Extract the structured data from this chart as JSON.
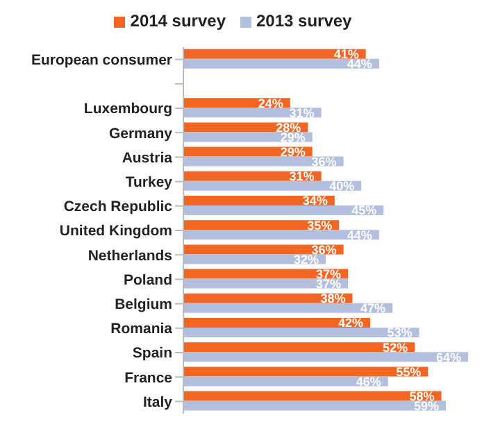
{
  "chart_data": {
    "type": "bar",
    "orientation": "horizontal",
    "legend": "top",
    "categories": [
      "European consumer",
      null,
      "Luxembourg",
      "Germany",
      "Austria",
      "Turkey",
      "Czech Republic",
      "United Kingdom",
      "Netherlands",
      "Poland",
      "Belgium",
      "Romania",
      "Spain",
      "France",
      "Italy"
    ],
    "series": [
      {
        "name": "2014 survey",
        "color": "#f26522",
        "values": [
          41,
          null,
          24,
          28,
          29,
          31,
          34,
          35,
          36,
          37,
          38,
          42,
          52,
          55,
          58
        ],
        "value_labels": [
          "41%",
          null,
          "24%",
          "28%",
          "29%",
          "31%",
          "34%",
          "35%",
          "36%",
          "37%",
          "38%",
          "42%",
          "52%",
          "55%",
          "58%"
        ]
      },
      {
        "name": "2013 survey",
        "color": "#b3bfde",
        "values": [
          44,
          null,
          31,
          29,
          36,
          40,
          45,
          44,
          32,
          37,
          47,
          53,
          64,
          46,
          59
        ],
        "value_labels": [
          "44%",
          null,
          "31%",
          "29%",
          "36%",
          "40%",
          "45%",
          "44%",
          "32%",
          "37%",
          "47%",
          "53%",
          "64%",
          "46%",
          "59%"
        ]
      }
    ]
  }
}
